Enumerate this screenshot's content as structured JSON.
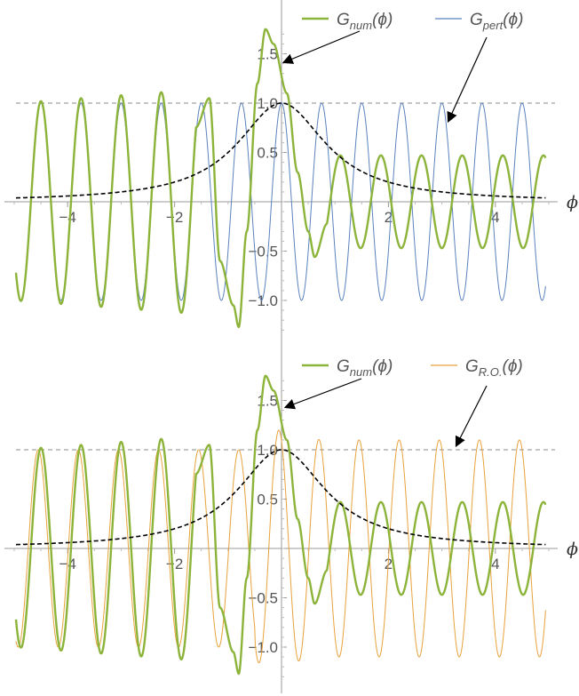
{
  "chart_data": [
    {
      "type": "line",
      "xlabel": "ϕ",
      "xlim": [
        -5,
        5
      ],
      "ylim": [
        -1.3,
        1.8
      ],
      "x_ticks": [
        -4,
        -2,
        2,
        4
      ],
      "x_tick_labels": [
        "-4",
        "-2",
        "2",
        "4"
      ],
      "y_ticks": [
        -1.0,
        -0.5,
        0.5,
        1.0,
        1.5
      ],
      "y_tick_labels": [
        "-1.0",
        "-0.5",
        "0.5",
        "1.0",
        "1.5"
      ],
      "reference_line": 1.0,
      "legend": [
        {
          "name": "G",
          "sub": "num",
          "arg": "(ϕ)",
          "color": "#8cb33a"
        },
        {
          "name": "G",
          "sub": "pert",
          "arg": "(ϕ)",
          "color": "#5b82be"
        }
      ],
      "series": [
        {
          "name": "G_num(ϕ)",
          "color": "#8cb33a",
          "style": "thick",
          "description": "oscillates with amplitude 1 for ϕ<-1, rises to peak ≈1.75 near ϕ≈-0.3 after a trough ≈-1.3 near ϕ≈-0.8, then oscillates between ≈0.5 and ≈-0.45 for ϕ>0.5"
        },
        {
          "name": "G_pert(ϕ)",
          "color": "#5b82be",
          "style": "thin",
          "description": "cos(2πϕ/0.75) oscillation with amplitude 1"
        },
        {
          "name": "envelope",
          "color": "#000000",
          "style": "dashed",
          "description": "1/(1+ϕ²), peak 1 at ϕ=0"
        }
      ]
    },
    {
      "type": "line",
      "xlabel": "ϕ",
      "xlim": [
        -5,
        5
      ],
      "ylim": [
        -1.3,
        1.8
      ],
      "x_ticks": [
        -4,
        -2,
        2,
        4
      ],
      "x_tick_labels": [
        "-4",
        "-2",
        "2",
        "4"
      ],
      "y_ticks": [
        -1.0,
        -0.5,
        0.5,
        1.0,
        1.5
      ],
      "y_tick_labels": [
        "-1.0",
        "-0.5",
        "0.5",
        "1.0",
        "1.5"
      ],
      "reference_line": 1.0,
      "legend": [
        {
          "name": "G",
          "sub": "num",
          "arg": "(ϕ)",
          "color": "#8cb33a"
        },
        {
          "name": "G",
          "sub": "R.O.",
          "arg": "(ϕ)",
          "color": "#e8a23a"
        }
      ],
      "series": [
        {
          "name": "G_num(ϕ)",
          "color": "#8cb33a",
          "style": "thick",
          "description": "same numerical curve as the upper panel"
        },
        {
          "name": "G_R.O.(ϕ)",
          "color": "#e8a23a",
          "style": "thin",
          "description": "oscillation with peak ≈1.2 near ϕ≈-0.3 and trough ≈-1.3 near ϕ≈0.1, amplitude ≈1.1 for ϕ>0"
        },
        {
          "name": "envelope",
          "color": "#000000",
          "style": "dashed",
          "description": "1/(1+ϕ²), peak 1 at ϕ=0"
        }
      ]
    }
  ]
}
